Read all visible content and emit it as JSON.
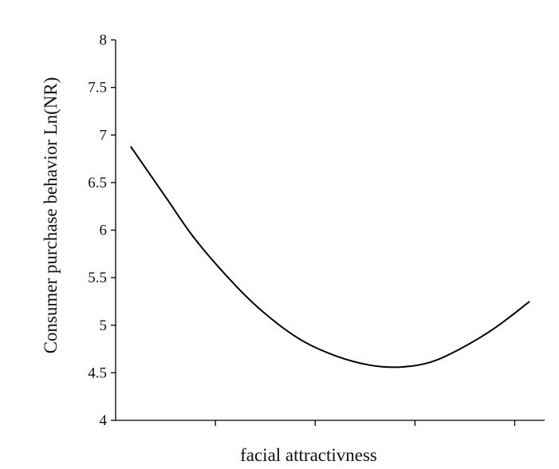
{
  "chart_data": {
    "type": "line",
    "title": "",
    "xlabel": "facial attractivness",
    "ylabel": "Consumer purchase behavior    Ln(NR)",
    "ylim": [
      4,
      8
    ],
    "yticks": [
      "4",
      "4.5",
      "5",
      "5.5",
      "6",
      "6.5",
      "7",
      "7.5",
      "8"
    ],
    "xlim": [
      0,
      4.3
    ],
    "xtick_values": [
      1,
      2,
      3,
      4
    ],
    "x": [
      0.15,
      0.5,
      0.8,
      1.2,
      1.5,
      1.85,
      2.2,
      2.55,
      2.85,
      3.15,
      3.45,
      3.8,
      4.15
    ],
    "series": [
      {
        "name": "",
        "values": [
          6.88,
          6.35,
          5.9,
          5.42,
          5.12,
          4.85,
          4.68,
          4.58,
          4.56,
          4.61,
          4.75,
          4.97,
          5.25
        ]
      }
    ],
    "grid": false,
    "legend": "none"
  }
}
